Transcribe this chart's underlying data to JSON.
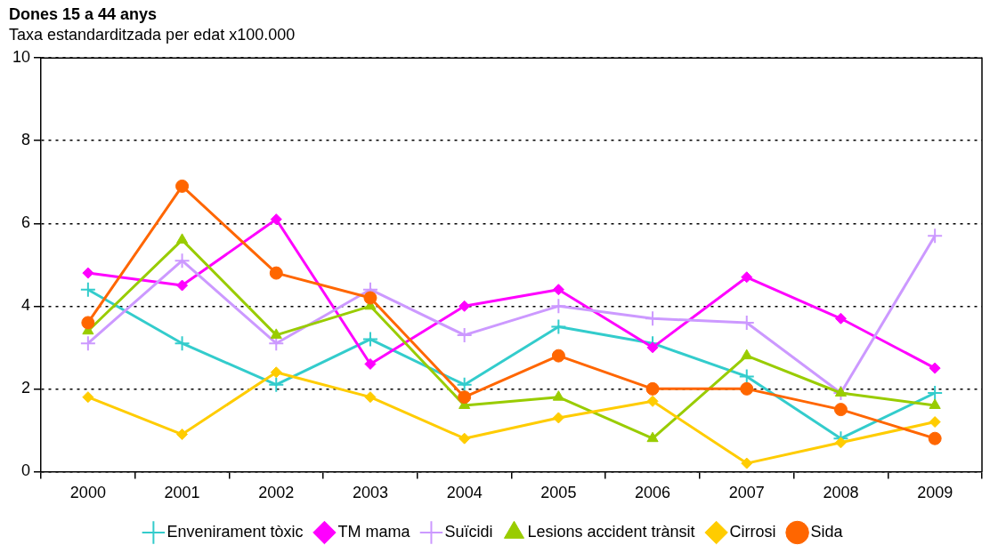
{
  "chart_data": {
    "type": "line",
    "title": "Dones 15 a 44 anys",
    "subtitle": "Taxa estandarditzada per edat x100.000",
    "categories": [
      "2000",
      "2001",
      "2002",
      "2003",
      "2004",
      "2005",
      "2006",
      "2007",
      "2008",
      "2009"
    ],
    "series": [
      {
        "name": "Envenirament tòxic",
        "color": "#33cccc",
        "marker": "cross",
        "values": [
          4.4,
          3.1,
          2.1,
          3.2,
          2.1,
          3.5,
          3.1,
          2.3,
          0.8,
          1.9
        ]
      },
      {
        "name": "TM mama",
        "color": "#ff00ff",
        "marker": "diamond",
        "values": [
          4.8,
          4.5,
          6.1,
          2.6,
          4.0,
          4.4,
          3.0,
          4.7,
          3.7,
          2.5
        ]
      },
      {
        "name": "Suïcidi",
        "color": "#cc99ff",
        "marker": "cross",
        "values": [
          3.1,
          5.1,
          3.1,
          4.4,
          3.3,
          4.0,
          3.7,
          3.6,
          1.9,
          5.7
        ]
      },
      {
        "name": "Lesions accident trànsit",
        "color": "#99cc00",
        "marker": "triangle",
        "values": [
          3.4,
          5.6,
          3.3,
          4.0,
          1.6,
          1.8,
          0.8,
          2.8,
          1.9,
          1.6
        ]
      },
      {
        "name": "Cirrosi",
        "color": "#ffcc00",
        "marker": "diamond",
        "values": [
          1.8,
          0.9,
          2.4,
          1.8,
          0.8,
          1.3,
          1.7,
          0.2,
          0.7,
          1.2
        ]
      },
      {
        "name": "Sida",
        "color": "#ff6600",
        "marker": "circle",
        "values": [
          3.6,
          6.9,
          4.8,
          4.2,
          1.8,
          2.8,
          2.0,
          2.0,
          1.5,
          0.8
        ]
      }
    ],
    "ylim": [
      0,
      10
    ],
    "yticks": [
      0,
      2,
      4,
      6,
      8,
      10
    ],
    "grid": "y",
    "legend": "bottom"
  }
}
